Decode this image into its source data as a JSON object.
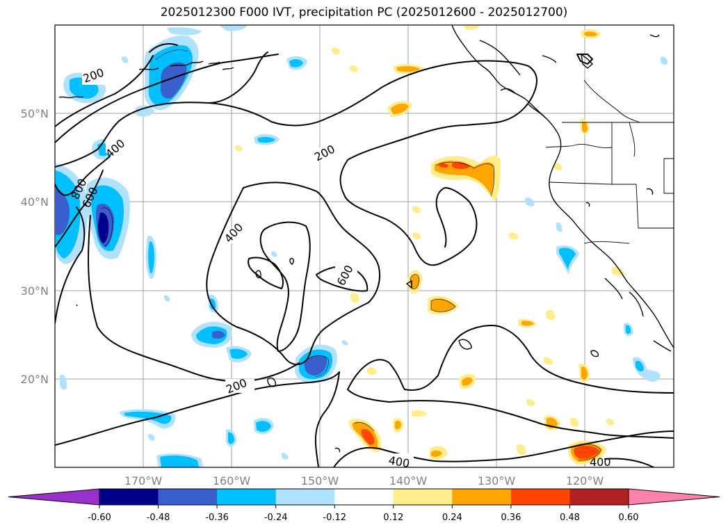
{
  "title": "2025012300 F000 IVT, precipitation PC (2025012600 - 2025012700)",
  "latitude_labels": [
    "50°N",
    "40°N",
    "30°N",
    "20°N"
  ],
  "longitude_labels": [
    "170°W",
    "160°W",
    "150°W",
    "140°W",
    "130°W",
    "120°W"
  ],
  "colorbar": {
    "ticks": [
      "-0.60",
      "-0.48",
      "-0.36",
      "-0.24",
      "-0.12",
      "0.12",
      "0.24",
      "0.36",
      "0.48",
      "0.60"
    ],
    "colors": [
      "#9932cc",
      "#00008b",
      "#3a5fcd",
      "#00bfff",
      "#b0e2ff",
      "#ffffff",
      "#ffec8b",
      "#ffa500",
      "#ff4500",
      "#b22222",
      "#ff82ab"
    ]
  },
  "ivt_contour_labels": [
    "200",
    "400",
    "600",
    "800",
    "200",
    "400",
    "600",
    "200",
    "400",
    "400"
  ]
}
